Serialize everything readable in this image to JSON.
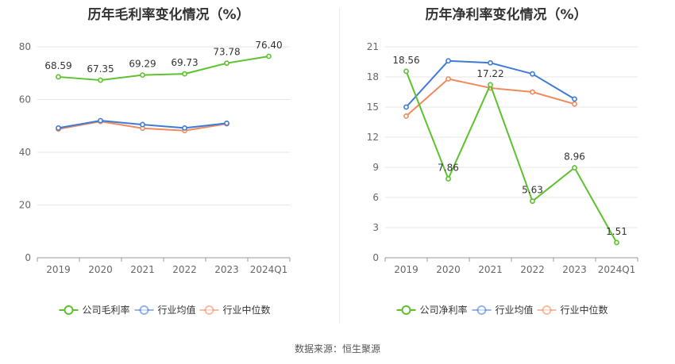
{
  "chart_data": [
    {
      "type": "line",
      "title": "历年毛利率变化情况（%）",
      "categories": [
        "2019",
        "2020",
        "2021",
        "2022",
        "2023",
        "2024Q1"
      ],
      "ylim": [
        0,
        80
      ],
      "yticks": [
        0,
        20,
        40,
        60,
        80
      ],
      "grid": true,
      "legend_position": "bottom-center",
      "series": [
        {
          "name": "公司毛利率",
          "color": "#5cc22d",
          "values": [
            68.59,
            67.35,
            69.29,
            69.73,
            73.78,
            76.4
          ],
          "labels": [
            "68.59",
            "67.35",
            "69.29",
            "69.73",
            "73.78",
            "76.40"
          ]
        },
        {
          "name": "行业均值",
          "color": "#3f7bd6",
          "values": [
            49.2,
            52.0,
            50.5,
            49.2,
            51.0,
            null
          ]
        },
        {
          "name": "行业中位数",
          "color": "#f08a5d",
          "values": [
            48.8,
            51.7,
            49.1,
            48.2,
            50.8,
            null
          ]
        }
      ]
    },
    {
      "type": "line",
      "title": "历年净利率变化情况（%）",
      "categories": [
        "2019",
        "2020",
        "2021",
        "2022",
        "2023",
        "2024Q1"
      ],
      "ylim": [
        0,
        21
      ],
      "yticks": [
        0,
        3,
        6,
        9,
        12,
        15,
        18,
        21
      ],
      "grid": true,
      "legend_position": "bottom-center",
      "series": [
        {
          "name": "公司净利率",
          "color": "#5cc22d",
          "values": [
            18.56,
            7.86,
            17.22,
            5.63,
            8.96,
            1.51
          ],
          "labels": [
            "18.56",
            "7.86",
            "17.22",
            "5.63",
            "8.96",
            "1.51"
          ]
        },
        {
          "name": "行业均值",
          "color": "#3f7bd6",
          "values": [
            15.0,
            19.6,
            19.4,
            18.3,
            15.8,
            null
          ]
        },
        {
          "name": "行业中位数",
          "color": "#f08a5d",
          "values": [
            14.1,
            17.8,
            16.9,
            16.5,
            15.3,
            null
          ]
        }
      ]
    }
  ],
  "footer": {
    "source": "数据来源：恒生聚源"
  }
}
